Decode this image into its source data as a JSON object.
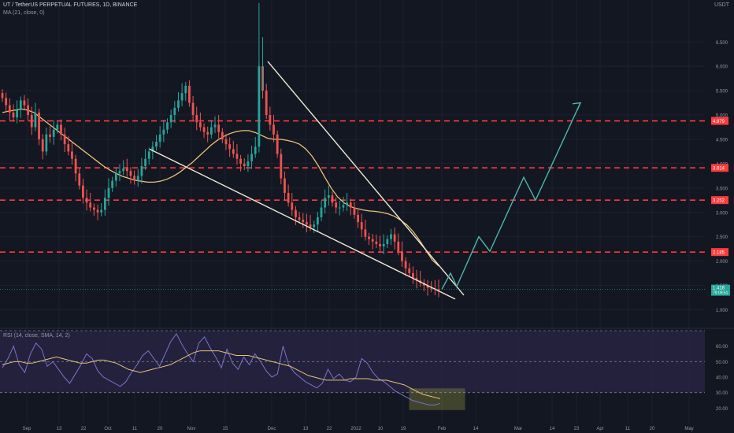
{
  "header": {
    "symbol_line": "UT / TetherUS PERPETUAL FUTURES, 1D, BINANCE",
    "ma_line": "MA (21, close, 0)",
    "rsi_line": "RSI (14, close, SMA, 14, 2)",
    "axis_unit": "USDT"
  },
  "colors": {
    "background": "#131722",
    "up_candle": "#26a69a",
    "down_candle": "#ef5350",
    "ma_line": "#e8c27a",
    "wedge_lines": "#f0ead6",
    "resistance_lines": "#ff3b3b",
    "projection": "#4db6ac",
    "rsi_line": "#7e72c8",
    "rsi_band": "#2a2546",
    "rsi_highlight": "#b5b84a"
  },
  "chart_data": {
    "type": "candlestick",
    "price_axis": {
      "ticks": [
        "6.500",
        "6.000",
        "5.500",
        "5.000",
        "4.500",
        "4.000",
        "3.500",
        "3.000",
        "2.500",
        "2.000",
        "1.500",
        "1.000"
      ],
      "range": [
        0.7,
        7.2
      ]
    },
    "date_ticks": [
      "Sep",
      "13",
      "22",
      "Oct",
      "11",
      "20",
      "Nov",
      "15",
      "Dec",
      "13",
      "22",
      "2022",
      "10",
      "19",
      "Feb",
      "14",
      "Mar",
      "14",
      "23",
      "Apr",
      "11",
      "20",
      "May"
    ],
    "candles_close": [
      5.35,
      5.2,
      5.05,
      4.95,
      5.1,
      5.3,
      5.2,
      5.0,
      4.75,
      5.05,
      4.5,
      4.25,
      4.6,
      4.55,
      4.7,
      4.8,
      4.6,
      4.4,
      4.25,
      4.1,
      3.8,
      3.55,
      3.3,
      3.2,
      3.1,
      3.05,
      3.0,
      3.05,
      3.3,
      3.5,
      3.65,
      3.8,
      3.85,
      3.9,
      3.85,
      3.75,
      3.65,
      3.75,
      3.95,
      4.1,
      4.25,
      4.35,
      4.45,
      4.6,
      4.7,
      4.85,
      5.0,
      5.15,
      5.3,
      5.45,
      5.6,
      5.25,
      5.0,
      4.85,
      4.75,
      4.65,
      4.6,
      4.75,
      4.8,
      4.65,
      4.5,
      4.4,
      4.3,
      4.2,
      4.1,
      4.0,
      3.95,
      4.05,
      4.2,
      4.35,
      6.0,
      5.5,
      5.0,
      4.8,
      4.6,
      4.2,
      3.7,
      3.4,
      3.2,
      3.05,
      2.9,
      2.85,
      2.8,
      2.75,
      2.7,
      2.75,
      2.9,
      3.1,
      3.3,
      3.35,
      3.2,
      3.1,
      3.1,
      3.15,
      3.2,
      3.1,
      2.95,
      2.8,
      2.65,
      2.5,
      2.45,
      2.4,
      2.35,
      2.3,
      2.35,
      2.45,
      2.55,
      2.4,
      2.2,
      2.0,
      1.85,
      1.75,
      1.65,
      1.6,
      1.55,
      1.5,
      1.45,
      1.44,
      1.42,
      1.418
    ],
    "last_price": "1.418",
    "last_price_sublabel": "79:09:51",
    "levels": [
      "4.879",
      "3.914",
      "3.252",
      "2.185"
    ],
    "moving_average": {
      "name": "MA (21, close, 0)",
      "values": [
        5.05,
        5.08,
        5.1,
        5.12,
        5.1,
        5.05,
        4.95,
        4.85,
        4.75,
        4.65,
        4.55,
        4.45,
        4.35,
        4.25,
        4.15,
        4.05,
        3.95,
        3.87,
        3.8,
        3.74,
        3.7,
        3.66,
        3.64,
        3.62,
        3.62,
        3.64,
        3.68,
        3.74,
        3.82,
        3.92,
        4.02,
        4.14,
        4.26,
        4.38,
        4.48,
        4.56,
        4.62,
        4.66,
        4.68,
        4.68,
        4.64,
        4.58,
        4.52,
        4.5,
        4.5,
        4.48,
        4.45,
        4.4,
        4.3,
        4.15,
        3.95,
        3.72,
        3.5,
        3.32,
        3.2,
        3.12,
        3.08,
        3.05,
        3.03,
        3.02,
        3.0,
        2.97,
        2.92,
        2.84,
        2.74,
        2.6,
        2.42,
        2.22,
        2.02,
        1.9
      ]
    },
    "wedge": {
      "upper": [
        {
          "x": "Nov 27",
          "y": 6.1
        },
        {
          "x": "Feb 1",
          "y": 1.3
        }
      ],
      "lower": [
        {
          "x": "Oct 18",
          "y": 4.3
        },
        {
          "x": "Feb 2",
          "y": 1.22
        }
      ]
    },
    "projection_path": [
      1.418,
      1.7,
      1.5,
      2.1,
      2.55,
      2.2,
      3.1,
      3.7,
      3.25,
      4.3,
      5.25,
      5.15
    ],
    "rsi": {
      "ticks": [
        "60.00",
        "50.00",
        "40.00",
        "30.00",
        "20.00"
      ],
      "band": [
        30,
        70
      ],
      "line": [
        46,
        52,
        60,
        48,
        43,
        55,
        62,
        58,
        47,
        50,
        45,
        40,
        36,
        42,
        48,
        55,
        52,
        44,
        40,
        38,
        36,
        34,
        37,
        43,
        48,
        54,
        57,
        52,
        47,
        55,
        63,
        68,
        61,
        55,
        50,
        62,
        66,
        59,
        53,
        46,
        58,
        49,
        45,
        53,
        48,
        55,
        50,
        44,
        40,
        42,
        60,
        48,
        43,
        40,
        37,
        35,
        33,
        36,
        45,
        39,
        42,
        38,
        37,
        40,
        52,
        49,
        43,
        39,
        37,
        34,
        31,
        29,
        27,
        25,
        24,
        23,
        22,
        22,
        23
      ],
      "signal": [
        48,
        49,
        50,
        50,
        49,
        49,
        50,
        51,
        52,
        53,
        52,
        51,
        50,
        49,
        49,
        50,
        51,
        51,
        50,
        49,
        47,
        45,
        44,
        43,
        44,
        45,
        46,
        47,
        48,
        50,
        52,
        54,
        56,
        57,
        57,
        57,
        57,
        56,
        55,
        54,
        54,
        54,
        53,
        52,
        51,
        50,
        49,
        48,
        47,
        45,
        43,
        41,
        40,
        39,
        38,
        38,
        38,
        38,
        39,
        39,
        39,
        39,
        38,
        38,
        38,
        37,
        36,
        35,
        33,
        31,
        29,
        28,
        27,
        26
      ]
    }
  }
}
